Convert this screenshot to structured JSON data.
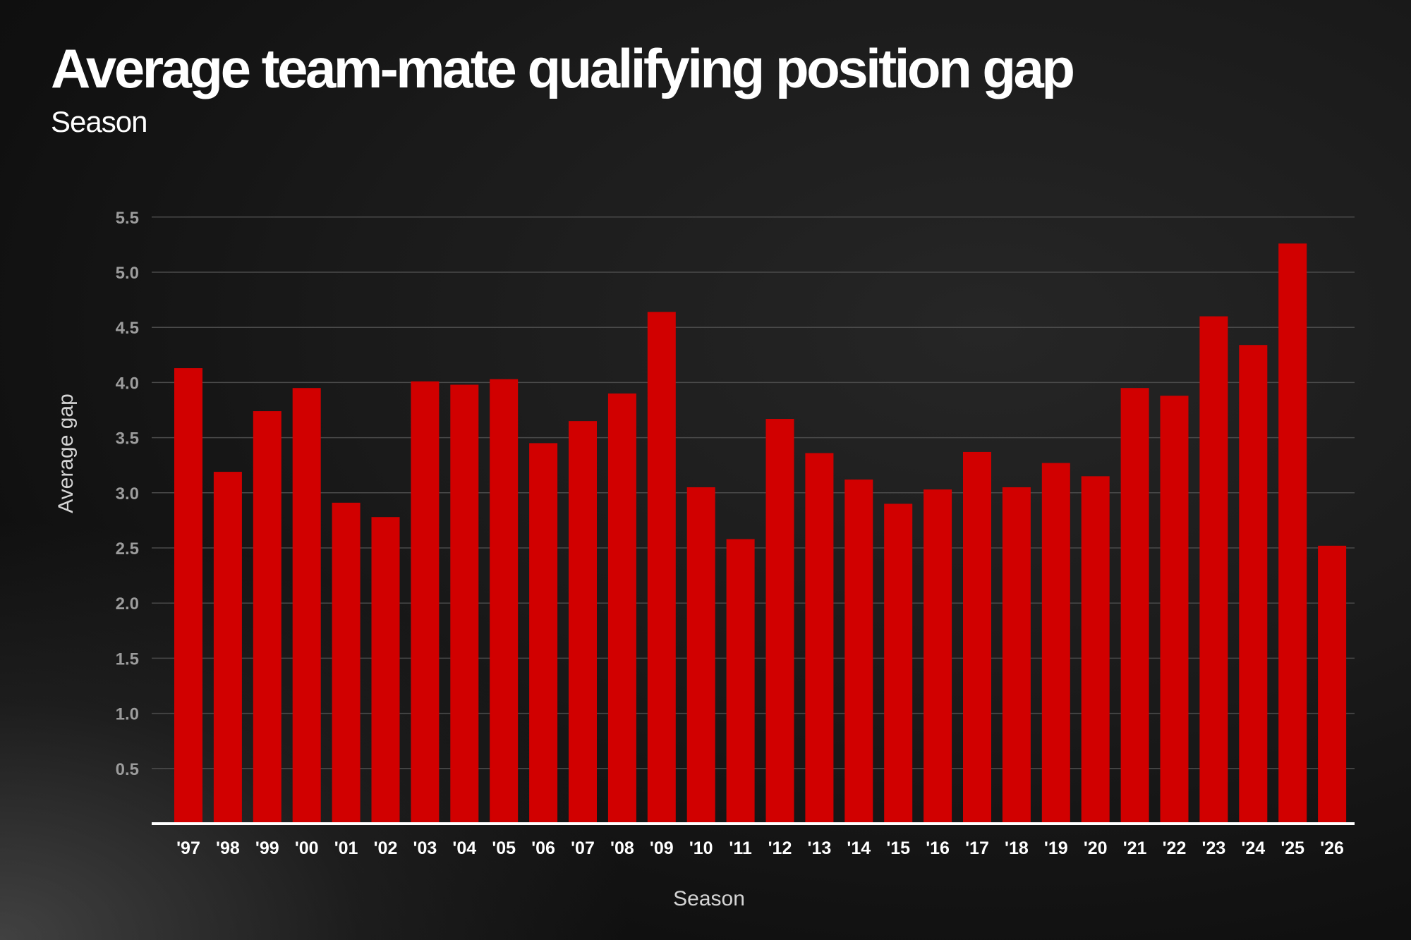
{
  "chart_data": {
    "type": "bar",
    "title": "Average team-mate qualifying position gap",
    "subtitle": "Season",
    "xlabel": "Season",
    "ylabel": "Average gap",
    "categories": [
      "'97",
      "'98",
      "'99",
      "'00",
      "'01",
      "'02",
      "'03",
      "'04",
      "'05",
      "'06",
      "'07",
      "'08",
      "'09",
      "'10",
      "'11",
      "'12",
      "'13",
      "'14",
      "'15",
      "'16",
      "'17",
      "'18",
      "'19",
      "'20",
      "'21",
      "'22",
      "'23",
      "'24",
      "'25",
      "'26"
    ],
    "values": [
      4.13,
      3.19,
      3.74,
      3.95,
      2.91,
      2.78,
      4.01,
      3.98,
      4.03,
      3.45,
      3.65,
      3.9,
      4.64,
      3.05,
      2.58,
      3.67,
      3.36,
      3.12,
      2.9,
      3.03,
      3.37,
      3.05,
      3.27,
      3.15,
      3.95,
      3.88,
      4.6,
      4.34,
      5.26,
      2.52
    ],
    "yticks": [
      0.5,
      1.0,
      1.5,
      2.0,
      2.5,
      3.0,
      3.5,
      4.0,
      4.5,
      5.0,
      5.5
    ],
    "ylim": [
      0,
      5.5
    ],
    "grid": true,
    "bar_color": "#d10000",
    "baseline_color": "#ffffff",
    "grid_color": "#4a4a4a"
  }
}
